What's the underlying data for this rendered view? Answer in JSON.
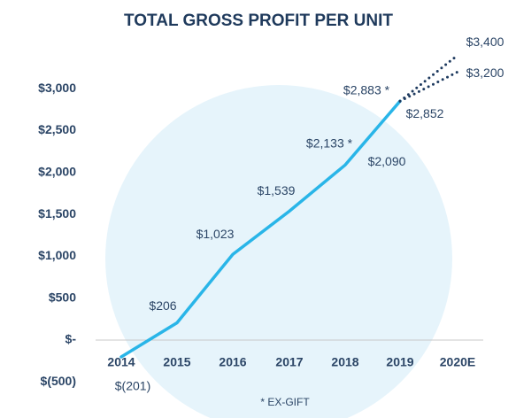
{
  "chart_data": {
    "type": "line",
    "title": "TOTAL GROSS PROFIT PER UNIT",
    "categories": [
      "2014",
      "2015",
      "2016",
      "2017",
      "2018",
      "2019",
      "2020E"
    ],
    "series": [
      {
        "color": "#29b5e8",
        "style": "solid",
        "values": [
          -201,
          206,
          1023,
          1539,
          2090,
          2852,
          null
        ],
        "value_labels": [
          "$(201)",
          "$206",
          "$1,023",
          "$1,539",
          "$2,090",
          "$2,852",
          null
        ]
      },
      {
        "color": "#1e3a5f",
        "style": "dotted",
        "values": [
          null,
          null,
          null,
          null,
          null,
          2852,
          3400
        ],
        "value_labels": [
          null,
          null,
          null,
          null,
          null,
          null,
          "$3,400"
        ]
      },
      {
        "color": "#1e3a5f",
        "style": "dotted",
        "values": [
          null,
          null,
          null,
          null,
          null,
          2852,
          3200
        ],
        "value_labels": [
          null,
          null,
          null,
          null,
          null,
          null,
          "$3,200"
        ]
      }
    ],
    "annotations": [
      "$2,133 *",
      "$2,883 *"
    ],
    "footnote": "* EX-GIFT",
    "ylim": [
      -500,
      3500
    ],
    "yticks": [
      {
        "value": -500,
        "label": "$(500)"
      },
      {
        "value": 0,
        "label": "$-"
      },
      {
        "value": 500,
        "label": "$500"
      },
      {
        "value": 1000,
        "label": "$1,000"
      },
      {
        "value": 1500,
        "label": "$1,500"
      },
      {
        "value": 2000,
        "label": "$2,000"
      },
      {
        "value": 2500,
        "label": "$2,500"
      },
      {
        "value": 3000,
        "label": "$3,000"
      }
    ]
  }
}
